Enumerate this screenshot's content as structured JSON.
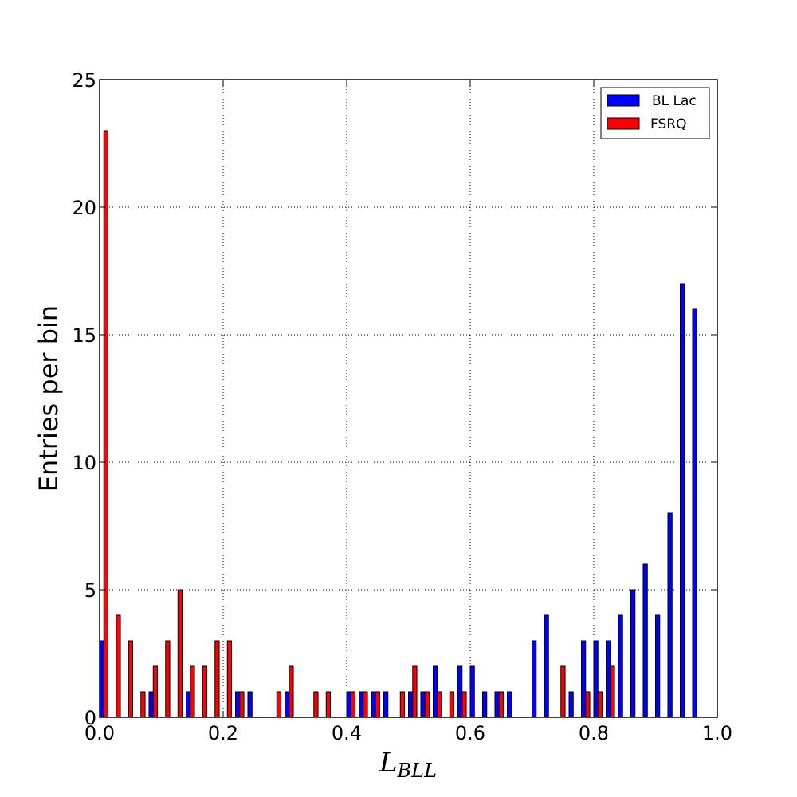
{
  "chart_data": {
    "type": "bar",
    "title": "",
    "xlabel_main": "L",
    "xlabel_sub": "BLL",
    "ylabel": "Entries per bin",
    "xlim": [
      0.0,
      1.0
    ],
    "ylim": [
      0,
      25
    ],
    "xticks": [
      0.0,
      0.2,
      0.4,
      0.6,
      0.8,
      1.0
    ],
    "xtick_labels": [
      "0.0",
      "0.2",
      "0.4",
      "0.6",
      "0.8",
      "1.0"
    ],
    "yticks": [
      0,
      5,
      10,
      15,
      20,
      25
    ],
    "ytick_labels": [
      "0",
      "5",
      "10",
      "15",
      "20",
      "25"
    ],
    "grid": true,
    "legend_position": "top-right",
    "bin_width": 0.02,
    "bin_starts": [
      0.0,
      0.02,
      0.04,
      0.06,
      0.08,
      0.1,
      0.12,
      0.14,
      0.16,
      0.18,
      0.2,
      0.22,
      0.24,
      0.26,
      0.28,
      0.3,
      0.32,
      0.34,
      0.36,
      0.38,
      0.4,
      0.42,
      0.44,
      0.46,
      0.48,
      0.5,
      0.52,
      0.54,
      0.56,
      0.58,
      0.6,
      0.62,
      0.64,
      0.66,
      0.68,
      0.7,
      0.72,
      0.74,
      0.76,
      0.78,
      0.8,
      0.82,
      0.84,
      0.86,
      0.88,
      0.9,
      0.92,
      0.94,
      0.96,
      0.98
    ],
    "series": [
      {
        "name": "BL Lac",
        "color": "#0000ff",
        "values": [
          3,
          0,
          0,
          0,
          1,
          0,
          0,
          1,
          0,
          0,
          0,
          1,
          1,
          0,
          0,
          1,
          0,
          0,
          0,
          0,
          1,
          1,
          1,
          1,
          0,
          1,
          1,
          2,
          0,
          2,
          2,
          1,
          1,
          1,
          0,
          3,
          4,
          0,
          1,
          3,
          3,
          3,
          4,
          5,
          6,
          4,
          8,
          17,
          16,
          0
        ]
      },
      {
        "name": "FSRQ",
        "color": "#ff0000",
        "values": [
          23,
          4,
          3,
          1,
          2,
          3,
          5,
          2,
          2,
          3,
          3,
          1,
          0,
          0,
          1,
          2,
          0,
          1,
          1,
          0,
          1,
          1,
          1,
          0,
          1,
          2,
          1,
          1,
          1,
          1,
          0,
          0,
          1,
          0,
          0,
          0,
          0,
          2,
          0,
          1,
          1,
          2,
          0,
          0,
          0,
          0,
          0,
          0,
          0,
          0
        ]
      }
    ]
  }
}
